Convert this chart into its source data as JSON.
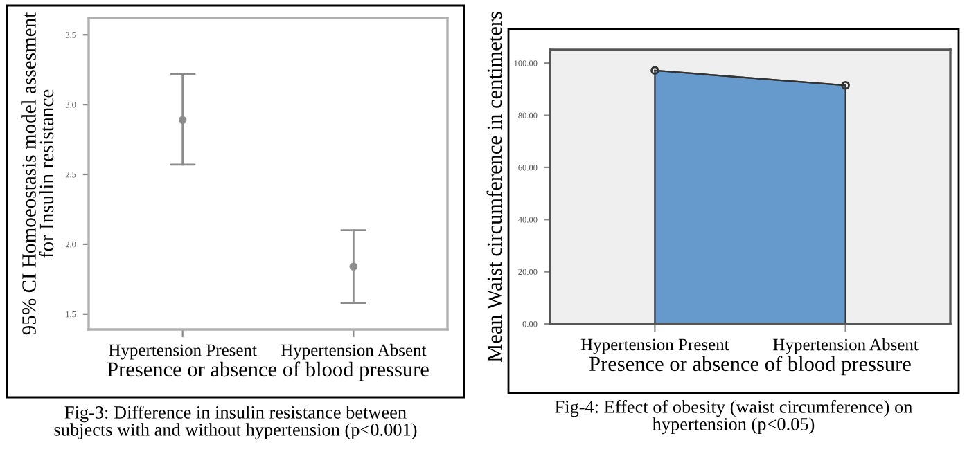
{
  "chart_data": [
    {
      "type": "scatter",
      "categories": [
        "Hypertension Present",
        "Hypertension Absent"
      ],
      "values": [
        2.89,
        1.84
      ],
      "errors": [
        [
          2.57,
          3.22
        ],
        [
          1.58,
          2.1
        ]
      ],
      "color": "#8c8c8c",
      "marker": "circle",
      "ylim": [
        1.39,
        3.62
      ],
      "yticks": [
        {
          "value": 1.5,
          "label": "1.5"
        },
        {
          "value": 2.0,
          "label": "2.0"
        },
        {
          "value": 2.5,
          "label": "2.5"
        },
        {
          "value": 3.0,
          "label": "3.0"
        },
        {
          "value": 3.5,
          "label": "3.5"
        }
      ],
      "xlabel": "Presence or absence of blood pressure",
      "ylabel": "95% CI Homoeostasis model assesment\nfor Insulin resistance",
      "grid": false,
      "annotations": [
        "Fig-3: Difference in insulin resistance between\nsubjects with and without hypertension (p<0.001)"
      ]
    },
    {
      "type": "area",
      "categories": [
        "Hypertension Present",
        "Hypertension Absent"
      ],
      "values": [
        97.2,
        91.5
      ],
      "color": "#6699cc",
      "marker": "circle",
      "ylim": [
        0,
        105.1
      ],
      "yticks": [
        {
          "value": 0,
          "label": "0.00"
        },
        {
          "value": 20,
          "label": "20.00"
        },
        {
          "value": 40,
          "label": "40.00"
        },
        {
          "value": 60,
          "label": "60.00"
        },
        {
          "value": 80,
          "label": "80.00"
        },
        {
          "value": 100,
          "label": "100.00"
        }
      ],
      "xlabel": "Presence or absence of blood pressure",
      "ylabel": "Mean Waist circumference in centimeters",
      "grid": false,
      "annotations": [
        "Fig-4: Effect of obesity (waist circumference) on\nhypertension (p<0.05)"
      ]
    }
  ]
}
